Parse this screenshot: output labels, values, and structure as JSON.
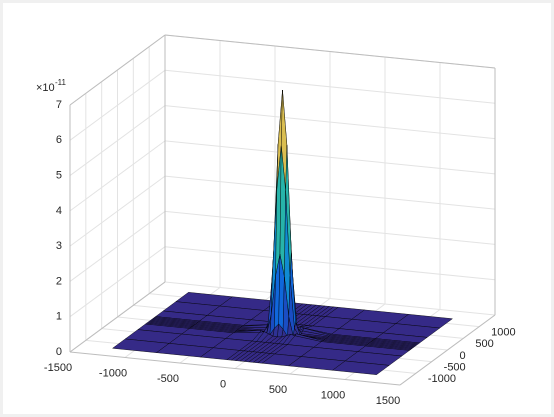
{
  "chart_data": {
    "type": "surface",
    "z_exponent_base": "×10",
    "z_exponent_power": "-11",
    "xlim": [
      -1500,
      1500
    ],
    "ylim": [
      -1500,
      1500
    ],
    "zlim": [
      0,
      7
    ],
    "xticks": [
      -1500,
      -1000,
      -500,
      0,
      500,
      1000,
      1500
    ],
    "yticks": [
      -1000,
      -500,
      0,
      500,
      1000
    ],
    "zticks": [
      0,
      1,
      2,
      3,
      4,
      5,
      6,
      7
    ],
    "grid": true,
    "colormap": "parula",
    "edge_color": "#000000",
    "x": [
      -1200,
      -800,
      -400,
      -160,
      -120,
      -80,
      -40,
      0,
      40,
      80,
      120,
      160,
      400,
      800,
      1200
    ],
    "y": [
      -1200,
      -800,
      -400,
      -160,
      -120,
      -80,
      -40,
      0,
      40,
      80,
      120,
      160,
      400,
      800,
      1200
    ],
    "z": [
      [
        0,
        0,
        0,
        0,
        0,
        0,
        0,
        0,
        0,
        0,
        0,
        0,
        0,
        0,
        0
      ],
      [
        0,
        0,
        0,
        0,
        0,
        0,
        0,
        0,
        0,
        0,
        0,
        0,
        0,
        0,
        0
      ],
      [
        0,
        0,
        0,
        0,
        0,
        0,
        0,
        0,
        0,
        0,
        0,
        0,
        0,
        0,
        0
      ],
      [
        0,
        0,
        0,
        0.09,
        0.12,
        0.07,
        0.02,
        0.01,
        0.02,
        0.07,
        0.12,
        0.09,
        0,
        0,
        0
      ],
      [
        0,
        0,
        0,
        0.12,
        0.04,
        0.02,
        0.21,
        0.35,
        0.21,
        0.02,
        0.04,
        0.12,
        0,
        0,
        0
      ],
      [
        0,
        0,
        0,
        0.07,
        0.02,
        0.55,
        1.67,
        2.3,
        1.67,
        0.55,
        0.02,
        0.07,
        0,
        0,
        0
      ],
      [
        0,
        0,
        0,
        0.02,
        0.21,
        1.67,
        4.09,
        5.35,
        4.09,
        1.67,
        0.21,
        0.02,
        0,
        0,
        0
      ],
      [
        0,
        0,
        0,
        0.01,
        0.35,
        2.3,
        5.35,
        6.9,
        5.35,
        2.3,
        0.35,
        0.01,
        0,
        0,
        0
      ],
      [
        0,
        0,
        0,
        0.02,
        0.21,
        1.67,
        4.09,
        5.35,
        4.09,
        1.67,
        0.21,
        0.02,
        0,
        0,
        0
      ],
      [
        0,
        0,
        0,
        0.07,
        0.02,
        0.55,
        1.67,
        2.3,
        1.67,
        0.55,
        0.02,
        0.07,
        0,
        0,
        0
      ],
      [
        0,
        0,
        0,
        0.12,
        0.04,
        0.02,
        0.21,
        0.35,
        0.21,
        0.02,
        0.04,
        0.12,
        0,
        0,
        0
      ],
      [
        0,
        0,
        0,
        0.09,
        0.12,
        0.07,
        0.02,
        0.01,
        0.02,
        0.07,
        0.12,
        0.09,
        0,
        0,
        0
      ],
      [
        0,
        0,
        0,
        0,
        0,
        0,
        0,
        0,
        0,
        0,
        0,
        0,
        0,
        0,
        0
      ],
      [
        0,
        0,
        0,
        0,
        0,
        0,
        0,
        0,
        0,
        0,
        0,
        0,
        0,
        0,
        0
      ],
      [
        0,
        0,
        0,
        0,
        0,
        0,
        0,
        0,
        0,
        0,
        0,
        0,
        0,
        0,
        0
      ]
    ]
  }
}
